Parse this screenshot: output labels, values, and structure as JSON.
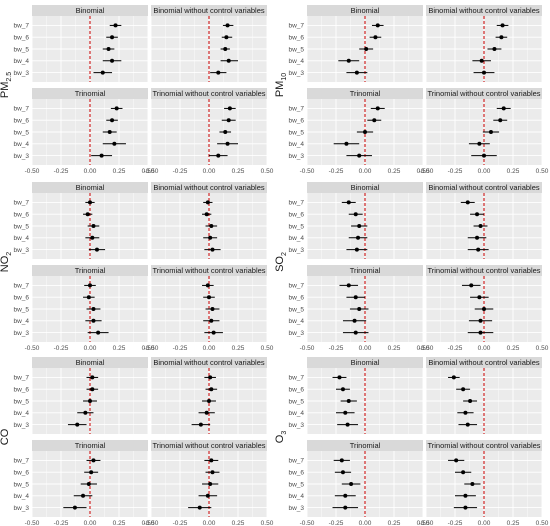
{
  "figure": {
    "style": {
      "panel_bg": "#ebebeb",
      "strip_bg": "#d9d9d9",
      "grid": "#ffffff",
      "ref_line": "#cc0000",
      "point": "#000000",
      "text": "#1a1a1a",
      "tick_text": "#4d4d4d"
    },
    "panel_titles": {
      "binomial": "Binomial",
      "binomial_noctrl": "Binomial without control variables",
      "trinomial": "Trinomial",
      "trinomial_noctrl": "Trinomial without control variables"
    },
    "x_tick_labels": [
      "-0.50",
      "-0.25",
      "0.00",
      "0.25",
      "0.50"
    ]
  },
  "chart_data": [
    {
      "type": "scatter",
      "pollutant": "PM2.5",
      "ylabel": "PM",
      "ylabel_sub": "2.5",
      "categories": [
        "bw_7",
        "bw_6",
        "bw_5",
        "bw_4",
        "bw_3"
      ],
      "xlim": [
        -0.5,
        0.5
      ],
      "ref_line_x": 0,
      "panels": {
        "binomial": {
          "estimates": [
            0.22,
            0.19,
            0.16,
            0.19,
            0.11
          ],
          "lower": [
            0.17,
            0.14,
            0.11,
            0.11,
            0.03
          ],
          "upper": [
            0.27,
            0.24,
            0.21,
            0.27,
            0.19
          ]
        },
        "binomial_noctrl": {
          "estimates": [
            0.16,
            0.15,
            0.14,
            0.17,
            0.08
          ],
          "lower": [
            0.12,
            0.11,
            0.1,
            0.1,
            0.01
          ],
          "upper": [
            0.21,
            0.2,
            0.18,
            0.25,
            0.15
          ]
        },
        "trinomial": {
          "estimates": [
            0.23,
            0.19,
            0.17,
            0.21,
            0.1
          ],
          "lower": [
            0.18,
            0.14,
            0.11,
            0.11,
            0.01
          ],
          "upper": [
            0.28,
            0.24,
            0.23,
            0.31,
            0.19
          ]
        },
        "trinomial_noctrl": {
          "estimates": [
            0.18,
            0.17,
            0.14,
            0.16,
            0.08
          ],
          "lower": [
            0.13,
            0.11,
            0.09,
            0.07,
            0.0
          ],
          "upper": [
            0.23,
            0.23,
            0.19,
            0.25,
            0.16
          ]
        }
      }
    },
    {
      "type": "scatter",
      "pollutant": "PM10",
      "ylabel": "PM",
      "ylabel_sub": "10",
      "categories": [
        "bw_7",
        "bw_6",
        "bw_5",
        "bw_4",
        "bw_3"
      ],
      "xlim": [
        -0.5,
        0.5
      ],
      "ref_line_x": 0,
      "panels": {
        "binomial": {
          "estimates": [
            0.11,
            0.09,
            0.01,
            -0.14,
            -0.07
          ],
          "lower": [
            0.06,
            0.04,
            -0.05,
            -0.23,
            -0.16
          ],
          "upper": [
            0.16,
            0.14,
            0.07,
            -0.05,
            0.02
          ]
        },
        "binomial_noctrl": {
          "estimates": [
            0.16,
            0.15,
            0.09,
            -0.02,
            0.0
          ],
          "lower": [
            0.11,
            0.1,
            0.03,
            -0.1,
            -0.09
          ],
          "upper": [
            0.21,
            0.2,
            0.15,
            0.06,
            0.09
          ]
        },
        "trinomial": {
          "estimates": [
            0.11,
            0.08,
            0.0,
            -0.16,
            -0.05
          ],
          "lower": [
            0.05,
            0.02,
            -0.07,
            -0.27,
            -0.16
          ],
          "upper": [
            0.17,
            0.14,
            0.07,
            -0.05,
            0.06
          ]
        },
        "trinomial_noctrl": {
          "estimates": [
            0.17,
            0.14,
            0.06,
            -0.04,
            0.0
          ],
          "lower": [
            0.11,
            0.08,
            -0.01,
            -0.13,
            -0.11
          ],
          "upper": [
            0.23,
            0.2,
            0.13,
            0.05,
            0.11
          ]
        }
      }
    },
    {
      "type": "scatter",
      "pollutant": "NO2",
      "ylabel": "NO",
      "ylabel_sub": "2",
      "categories": [
        "bw_7",
        "bw_6",
        "bw_5",
        "bw_4",
        "bw_3"
      ],
      "xlim": [
        -0.5,
        0.5
      ],
      "ref_line_x": 0,
      "panels": {
        "binomial": {
          "estimates": [
            0.0,
            -0.02,
            0.03,
            0.02,
            0.06
          ],
          "lower": [
            -0.04,
            -0.06,
            -0.02,
            -0.04,
            -0.01
          ],
          "upper": [
            0.04,
            0.02,
            0.08,
            0.08,
            0.13
          ]
        },
        "binomial_noctrl": {
          "estimates": [
            -0.01,
            -0.02,
            0.02,
            0.01,
            0.03
          ],
          "lower": [
            -0.05,
            -0.06,
            -0.03,
            -0.05,
            -0.04
          ],
          "upper": [
            0.03,
            0.02,
            0.07,
            0.07,
            0.1
          ]
        },
        "trinomial": {
          "estimates": [
            0.0,
            -0.01,
            0.03,
            0.03,
            0.07
          ],
          "lower": [
            -0.05,
            -0.06,
            -0.03,
            -0.04,
            -0.02
          ],
          "upper": [
            0.05,
            0.04,
            0.09,
            0.1,
            0.16
          ]
        },
        "trinomial_noctrl": {
          "estimates": [
            -0.01,
            0.0,
            0.03,
            0.02,
            0.04
          ],
          "lower": [
            -0.06,
            -0.05,
            -0.03,
            -0.05,
            -0.04
          ],
          "upper": [
            0.04,
            0.05,
            0.09,
            0.09,
            0.12
          ]
        }
      }
    },
    {
      "type": "scatter",
      "pollutant": "SO2",
      "ylabel": "SO",
      "ylabel_sub": "2",
      "categories": [
        "bw_7",
        "bw_6",
        "bw_5",
        "bw_4",
        "bw_3"
      ],
      "xlim": [
        -0.5,
        0.5
      ],
      "ref_line_x": 0,
      "panels": {
        "binomial": {
          "estimates": [
            -0.14,
            -0.08,
            -0.05,
            -0.06,
            -0.07
          ],
          "lower": [
            -0.2,
            -0.14,
            -0.12,
            -0.14,
            -0.16
          ],
          "upper": [
            -0.08,
            -0.02,
            0.02,
            0.02,
            0.02
          ]
        },
        "binomial_noctrl": {
          "estimates": [
            -0.14,
            -0.06,
            -0.03,
            -0.06,
            -0.05
          ],
          "lower": [
            -0.2,
            -0.12,
            -0.09,
            -0.14,
            -0.14
          ],
          "upper": [
            -0.08,
            0.0,
            0.03,
            0.02,
            0.04
          ]
        },
        "trinomial": {
          "estimates": [
            -0.14,
            -0.08,
            -0.05,
            -0.09,
            -0.08
          ],
          "lower": [
            -0.22,
            -0.16,
            -0.13,
            -0.19,
            -0.19
          ],
          "upper": [
            -0.06,
            0.0,
            0.03,
            0.01,
            0.03
          ]
        },
        "trinomial_noctrl": {
          "estimates": [
            -0.11,
            -0.04,
            0.0,
            -0.03,
            -0.03
          ],
          "lower": [
            -0.19,
            -0.12,
            -0.08,
            -0.13,
            -0.14
          ],
          "upper": [
            -0.03,
            0.04,
            0.08,
            0.07,
            0.08
          ]
        }
      }
    },
    {
      "type": "scatter",
      "pollutant": "CO",
      "ylabel": "CO",
      "ylabel_sub": "",
      "categories": [
        "bw_7",
        "bw_6",
        "bw_5",
        "bw_4",
        "bw_3"
      ],
      "xlim": [
        -0.5,
        0.5
      ],
      "ref_line_x": 0,
      "panels": {
        "binomial": {
          "estimates": [
            0.02,
            0.02,
            0.0,
            -0.04,
            -0.11
          ],
          "lower": [
            -0.03,
            -0.03,
            -0.06,
            -0.11,
            -0.19
          ],
          "upper": [
            0.07,
            0.07,
            0.06,
            0.03,
            -0.03
          ]
        },
        "binomial_noctrl": {
          "estimates": [
            0.01,
            0.02,
            0.0,
            -0.02,
            -0.07
          ],
          "lower": [
            -0.04,
            -0.03,
            -0.06,
            -0.09,
            -0.15
          ],
          "upper": [
            0.06,
            0.07,
            0.06,
            0.05,
            0.01
          ]
        },
        "trinomial": {
          "estimates": [
            0.03,
            0.01,
            -0.01,
            -0.06,
            -0.13
          ],
          "lower": [
            -0.03,
            -0.05,
            -0.08,
            -0.14,
            -0.23
          ],
          "upper": [
            0.09,
            0.07,
            0.06,
            0.02,
            -0.03
          ]
        },
        "trinomial_noctrl": {
          "estimates": [
            0.02,
            0.03,
            0.01,
            -0.01,
            -0.08
          ],
          "lower": [
            -0.04,
            -0.03,
            -0.06,
            -0.09,
            -0.18
          ],
          "upper": [
            0.08,
            0.09,
            0.08,
            0.07,
            0.02
          ]
        }
      }
    },
    {
      "type": "scatter",
      "pollutant": "O3",
      "ylabel": "O",
      "ylabel_sub": "3",
      "categories": [
        "bw_7",
        "bw_6",
        "bw_5",
        "bw_4",
        "bw_3"
      ],
      "xlim": [
        -0.5,
        0.5
      ],
      "ref_line_x": 0,
      "panels": {
        "binomial": {
          "estimates": [
            -0.22,
            -0.19,
            -0.14,
            -0.17,
            -0.15
          ],
          "lower": [
            -0.28,
            -0.25,
            -0.21,
            -0.25,
            -0.24
          ],
          "upper": [
            -0.16,
            -0.13,
            -0.07,
            -0.09,
            -0.06
          ]
        },
        "binomial_noctrl": {
          "estimates": [
            -0.26,
            -0.18,
            -0.12,
            -0.16,
            -0.14
          ],
          "lower": [
            -0.31,
            -0.24,
            -0.18,
            -0.23,
            -0.22
          ],
          "upper": [
            -0.21,
            -0.12,
            -0.06,
            -0.09,
            -0.06
          ]
        },
        "trinomial": {
          "estimates": [
            -0.2,
            -0.19,
            -0.12,
            -0.17,
            -0.17
          ],
          "lower": [
            -0.27,
            -0.26,
            -0.2,
            -0.26,
            -0.28
          ],
          "upper": [
            -0.13,
            -0.12,
            -0.04,
            -0.08,
            -0.06
          ]
        },
        "trinomial_noctrl": {
          "estimates": [
            -0.24,
            -0.18,
            -0.1,
            -0.16,
            -0.16
          ],
          "lower": [
            -0.31,
            -0.25,
            -0.17,
            -0.25,
            -0.26
          ],
          "upper": [
            -0.17,
            -0.11,
            -0.03,
            -0.07,
            -0.06
          ]
        }
      }
    }
  ]
}
